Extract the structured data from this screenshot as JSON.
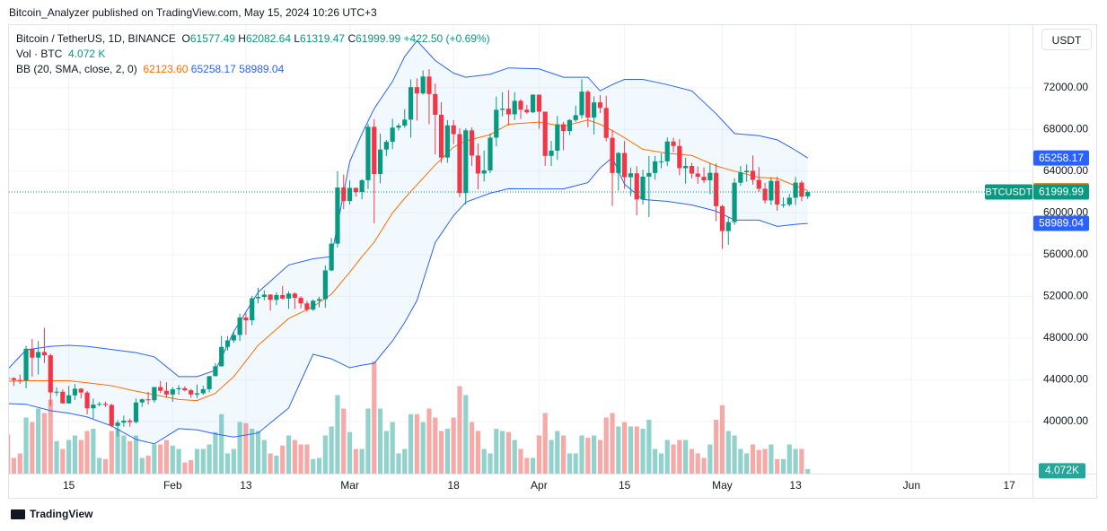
{
  "header": {
    "published": "Bitcoin_Analyzer published on TradingView.com, May 15, 2024 10:26 UTC+3"
  },
  "legend": {
    "symbol": "Bitcoin / TetherUS, 1D, BINANCE",
    "ohlc": [
      {
        "label": "O",
        "value": 61577.49
      },
      {
        "label": "H",
        "value": 62082.64
      },
      {
        "label": "L",
        "value": 61319.47
      },
      {
        "label": "C",
        "value": 61999.99
      }
    ],
    "change": "+422.50 (+0.69%)",
    "volume_name": "Vol · BTC",
    "volume_value": "4.072 K",
    "bb_name": "BB (20, SMA, close, 2, 0)",
    "bb_values": [
      "62123.60",
      "65258.17",
      "58989.04"
    ]
  },
  "currency": "USDT",
  "footer": {
    "brand": "TradingView"
  },
  "chart_data": {
    "type": "candlestick",
    "up_color": "#089981",
    "down_color": "#f23645",
    "volume_up_color": "#92d2cc",
    "volume_down_color": "#f7a9a7",
    "grid": true,
    "xlim": [
      5.2,
      172.8
    ],
    "ylim": [
      35000,
      78000
    ],
    "volume_lim": [
      0,
      400000
    ],
    "xticks": [
      15,
      {
        "value": 32,
        "label": "Feb"
      },
      {
        "value": 44,
        "label": "13"
      },
      {
        "value": 61,
        "label": "Mar"
      },
      {
        "value": 78,
        "label": "18"
      },
      {
        "value": 92,
        "label": "Apr"
      },
      {
        "value": 106,
        "label": "15"
      },
      {
        "value": 122,
        "label": "May"
      },
      {
        "value": 134,
        "label": "13"
      },
      {
        "value": 153,
        "label": "Jun"
      },
      {
        "value": 169,
        "label": "17"
      }
    ],
    "yticks": [
      {
        "value": 40000,
        "label": "40000.00"
      },
      {
        "value": 44000,
        "label": "44000.00"
      },
      {
        "value": 48000,
        "label": "48000.00"
      },
      {
        "value": 52000,
        "label": "52000.00"
      },
      {
        "value": 56000,
        "label": "56000.00"
      },
      {
        "value": 60000,
        "label": "60000.00"
      },
      {
        "value": 64000,
        "label": "64000.00"
      },
      {
        "value": 68000,
        "label": "68000.00"
      },
      {
        "value": 72000,
        "label": "72000.00"
      }
    ],
    "x": [
      5,
      6,
      7,
      8,
      9,
      10,
      11,
      12,
      13,
      14,
      15,
      16,
      17,
      18,
      19,
      20,
      21,
      22,
      23,
      24,
      25,
      26,
      27,
      28,
      29,
      30,
      31,
      32,
      33,
      34,
      35,
      36,
      37,
      38,
      39,
      40,
      41,
      42,
      43,
      44,
      45,
      46,
      47,
      48,
      49,
      50,
      51,
      52,
      53,
      54,
      55,
      56,
      57,
      58,
      59,
      60,
      61,
      62,
      63,
      64,
      65,
      66,
      67,
      68,
      69,
      70,
      71,
      72,
      73,
      74,
      75,
      76,
      77,
      78,
      79,
      80,
      81,
      82,
      83,
      84,
      85,
      86,
      87,
      88,
      89,
      90,
      91,
      92,
      93,
      94,
      95,
      96,
      97,
      98,
      99,
      100,
      101,
      102,
      103,
      104,
      105,
      106,
      107,
      108,
      109,
      110,
      111,
      112,
      113,
      114,
      115,
      116,
      117,
      118,
      119,
      120,
      121,
      122,
      123,
      124,
      125,
      126,
      127,
      128,
      129,
      130,
      131,
      132,
      133,
      134,
      135,
      136
    ],
    "open": [
      44180,
      44150,
      43970,
      43930,
      46970,
      46120,
      46660,
      46340,
      42780,
      42850,
      41730,
      42510,
      43140,
      42770,
      41260,
      41610,
      41680,
      41580,
      39570,
      39890,
      40080,
      39940,
      41820,
      42120,
      42030,
      43300,
      42940,
      42580,
      43080,
      43190,
      42990,
      42580,
      42700,
      43090,
      44340,
      45290,
      47150,
      47770,
      48290,
      49960,
      49700,
      51810,
      51940,
      52160,
      51660,
      52120,
      51780,
      52260,
      51850,
      51320,
      50730,
      51570,
      51730,
      54480,
      57050,
      62430,
      61130,
      62390,
      61990,
      63130,
      68250,
      63720,
      66070,
      66810,
      68170,
      68360,
      68940,
      72050,
      71450,
      73070,
      71390,
      69400,
      65300,
      68390,
      67550,
      61900,
      67910,
      65490,
      63770,
      64070,
      67210,
      69880,
      69990,
      69450,
      70740,
      69890,
      69640,
      71330,
      69700,
      65460,
      65960,
      68490,
      67840,
      68900,
      69360,
      71620,
      69140,
      70590,
      70060,
      67190,
      63820,
      65740,
      63420,
      63790,
      61280,
      63470,
      63820,
      64940,
      64940,
      66840,
      66410,
      64280,
      64500,
      63770,
      63460,
      63120,
      63840,
      60640,
      58250,
      59120,
      62890,
      63890,
      64030,
      63160,
      62310,
      61190,
      63070,
      60790,
      60790,
      61450,
      62900,
      61577.49
    ],
    "high": [
      44730,
      44230,
      44500,
      47250,
      47900,
      47700,
      48970,
      46500,
      43260,
      43080,
      43400,
      43580,
      43200,
      42930,
      42200,
      41880,
      41900,
      41700,
      40130,
      40560,
      40280,
      42200,
      42200,
      42840,
      43300,
      43880,
      43750,
      43290,
      43480,
      43380,
      43120,
      43540,
      43420,
      44370,
      45600,
      48200,
      48170,
      48590,
      50330,
      50370,
      52040,
      52820,
      52580,
      52200,
      52380,
      52990,
      52480,
      52380,
      52000,
      51560,
      51690,
      51950,
      54960,
      57580,
      64000,
      63680,
      63110,
      62430,
      63230,
      68530,
      69000,
      67600,
      67000,
      69020,
      68580,
      69950,
      72800,
      72900,
      73650,
      73780,
      72400,
      70600,
      68900,
      68900,
      68100,
      68100,
      68200,
      66650,
      65970,
      67620,
      71150,
      71560,
      71770,
      71570,
      70900,
      70350,
      71370,
      71340,
      69700,
      66900,
      69290,
      68730,
      69000,
      70290,
      72800,
      71760,
      71170,
      71280,
      71230,
      67930,
      65830,
      66880,
      64350,
      64470,
      64120,
      65450,
      65460,
      65700,
      67230,
      67200,
      67070,
      65280,
      64790,
      64450,
      64350,
      64740,
      64730,
      60780,
      59600,
      63320,
      64500,
      64650,
      65500,
      64390,
      62880,
      63420,
      63460,
      61480,
      61820,
      63450,
      63100,
      62082.64
    ],
    "low": [
      42600,
      43400,
      43600,
      43180,
      44300,
      44500,
      45600,
      41500,
      42440,
      41720,
      41720,
      42050,
      42200,
      40680,
      40280,
      41450,
      41400,
      39440,
      38560,
      39490,
      39510,
      39820,
      41400,
      41620,
      41800,
      42700,
      42280,
      41880,
      42570,
      42880,
      42260,
      42260,
      42570,
      42790,
      44340,
      45250,
      46800,
      47540,
      47710,
      48300,
      49220,
      51320,
      51620,
      50630,
      51150,
      51700,
      50800,
      50780,
      50840,
      50520,
      50600,
      50940,
      50900,
      54400,
      56690,
      60360,
      60800,
      61560,
      61300,
      62300,
      59000,
      62840,
      65450,
      66100,
      67900,
      68150,
      67200,
      68850,
      71330,
      68500,
      65600,
      64800,
      64800,
      66600,
      61500,
      60800,
      64500,
      62260,
      63000,
      63820,
      66390,
      69250,
      68370,
      68900,
      69000,
      69500,
      69570,
      68060,
      64500,
      64490,
      65080,
      66000,
      67450,
      68720,
      69040,
      68210,
      67520,
      69560,
      66850,
      60660,
      62140,
      62300,
      61620,
      59770,
      60800,
      59600,
      63170,
      64270,
      64500,
      65800,
      63600,
      62800,
      63320,
      62790,
      62850,
      61800,
      59190,
      56550,
      56940,
      58850,
      62600,
      62980,
      62700,
      62020,
      60900,
      60750,
      60200,
      60500,
      60620,
      60750,
      61120,
      61319.47
    ],
    "close": [
      44150,
      43970,
      43930,
      46970,
      46120,
      46660,
      46340,
      42780,
      42850,
      41730,
      42510,
      43140,
      42770,
      41260,
      41610,
      41680,
      41580,
      39570,
      39890,
      40080,
      39940,
      41820,
      42120,
      42030,
      43300,
      42940,
      42580,
      43080,
      43190,
      42990,
      42580,
      42700,
      43090,
      44340,
      45290,
      47150,
      47770,
      48290,
      49960,
      49700,
      51810,
      51940,
      52160,
      51660,
      52120,
      51780,
      52260,
      51850,
      51320,
      50730,
      51570,
      51730,
      54480,
      57050,
      62430,
      61130,
      62390,
      61990,
      63130,
      68250,
      63720,
      66070,
      66810,
      68170,
      68360,
      68940,
      72050,
      71450,
      73070,
      71390,
      69400,
      65300,
      68390,
      67550,
      61900,
      67910,
      65490,
      63770,
      64070,
      67210,
      69880,
      69990,
      69450,
      70740,
      69890,
      69640,
      71330,
      69700,
      65460,
      65960,
      68490,
      67840,
      68900,
      69360,
      71620,
      69140,
      70590,
      70060,
      67190,
      63820,
      65740,
      63420,
      63790,
      61280,
      63470,
      63820,
      64940,
      64940,
      66840,
      66410,
      64280,
      64500,
      63770,
      63460,
      63120,
      63840,
      60640,
      58250,
      59120,
      62890,
      63890,
      64030,
      63160,
      62310,
      61190,
      63070,
      60790,
      60790,
      61450,
      62900,
      61550,
      61999.99
    ],
    "volume": [
      35000,
      14000,
      18000,
      50000,
      46000,
      58000,
      54000,
      66000,
      29000,
      22000,
      30000,
      34000,
      30000,
      38000,
      40000,
      14000,
      13000,
      38000,
      40000,
      34000,
      29000,
      34000,
      14000,
      16000,
      26000,
      26000,
      30000,
      25000,
      22000,
      10000,
      12000,
      22000,
      22000,
      26000,
      37000,
      53000,
      18000,
      22000,
      46000,
      45000,
      40000,
      38000,
      30000,
      18000,
      16000,
      25000,
      34000,
      30000,
      26000,
      26000,
      13000,
      14000,
      34000,
      42000,
      70000,
      58000,
      37000,
      22000,
      22000,
      58000,
      100000,
      58000,
      38000,
      46000,
      18000,
      22000,
      53000,
      53000,
      46000,
      58000,
      50000,
      38000,
      40000,
      50000,
      78000,
      70000,
      46000,
      38000,
      22000,
      18000,
      40000,
      38000,
      37000,
      30000,
      22000,
      14000,
      14000,
      34000,
      54000,
      30000,
      38000,
      34000,
      18000,
      18000,
      34000,
      32000,
      34000,
      30000,
      50000,
      54000,
      42000,
      46000,
      42000,
      42000,
      40000,
      48000,
      22000,
      18000,
      30000,
      26000,
      30000,
      30000,
      22000,
      18000,
      14000,
      26000,
      48000,
      61000,
      38000,
      34000,
      22000,
      18000,
      26000,
      21000,
      22000,
      26000,
      13000,
      13000,
      26000,
      22000,
      22000,
      4072
    ],
    "bollinger": {
      "band_color": "#2962ff",
      "basis_color": "#ff6d00",
      "x": [
        5,
        8,
        12,
        15,
        18,
        22,
        26,
        29,
        33,
        36,
        39,
        42,
        46,
        51,
        55,
        58,
        61,
        63,
        65,
        68,
        70,
        72,
        75,
        78,
        80,
        84,
        87,
        92,
        96,
        100,
        102,
        104,
        106,
        109,
        113,
        117,
        121,
        124,
        128,
        131,
        134,
        136
      ],
      "upper": [
        45000,
        46860,
        47200,
        47300,
        47200,
        46900,
        46600,
        46200,
        44300,
        44300,
        44900,
        48600,
        52400,
        55000,
        55600,
        55800,
        64900,
        67600,
        70000,
        72600,
        75000,
        76500,
        74600,
        73400,
        73000,
        73300,
        73900,
        73800,
        73000,
        73000,
        71700,
        72300,
        72800,
        72800,
        72300,
        71700,
        69500,
        67600,
        67400,
        67000,
        66000,
        65258.17
      ],
      "basis": [
        43860,
        43900,
        43900,
        43900,
        43700,
        43430,
        42900,
        42570,
        42100,
        42000,
        42700,
        44300,
        47300,
        49870,
        51000,
        52200,
        54300,
        55800,
        57200,
        60000,
        61400,
        62700,
        64600,
        66300,
        66900,
        67500,
        68500,
        68700,
        68300,
        68900,
        68500,
        67900,
        67200,
        66100,
        65700,
        65500,
        64500,
        64000,
        63400,
        63300,
        62600,
        62123.6
      ],
      "lower": [
        41720,
        41650,
        41030,
        40800,
        40430,
        39570,
        38280,
        37850,
        39310,
        39200,
        38800,
        38500,
        38900,
        41290,
        46440,
        46000,
        45150,
        45400,
        45580,
        47720,
        49500,
        51600,
        57160,
        59730,
        61020,
        61880,
        62310,
        62300,
        62300,
        62900,
        64300,
        65300,
        62740,
        61280,
        61100,
        60760,
        60160,
        59300,
        59300,
        58700,
        58900,
        58989.04
      ]
    },
    "price_tags": [
      {
        "value": 65258.17,
        "label": "65258.17",
        "color": "#2962ff"
      },
      {
        "value": 62123.6,
        "label": "62123.60",
        "color": "#ff6d00"
      },
      {
        "value": 61999.99,
        "label": "61999.99",
        "color": "#089981",
        "name": "BTCUSDT"
      },
      {
        "value": 58989.04,
        "label": "58989.04",
        "color": "#2962ff"
      }
    ],
    "volume_tag": {
      "value": 4072,
      "label": "4.072K",
      "color": "#26a69a"
    }
  }
}
